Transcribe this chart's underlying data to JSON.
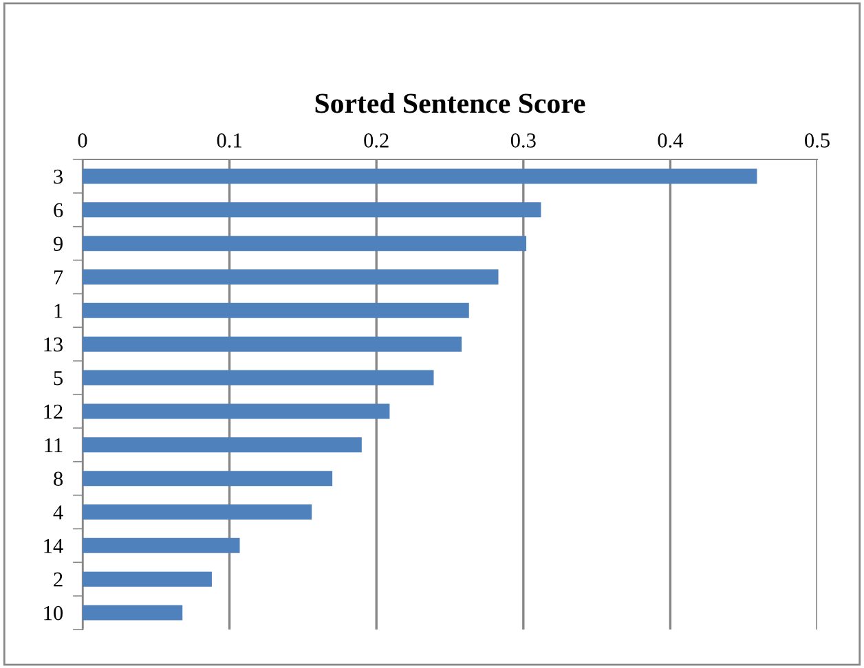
{
  "chart_data": {
    "type": "bar",
    "orientation": "horizontal",
    "title": "Sorted Sentence Score",
    "categories": [
      "3",
      "6",
      "9",
      "7",
      "1",
      "13",
      "5",
      "12",
      "11",
      "8",
      "4",
      "14",
      "2",
      "10"
    ],
    "values": [
      0.459,
      0.312,
      0.302,
      0.283,
      0.263,
      0.258,
      0.239,
      0.209,
      0.19,
      0.17,
      0.156,
      0.107,
      0.088,
      0.068
    ],
    "color": "#4f81bd",
    "xlim": [
      0,
      0.5
    ],
    "xticks": [
      0,
      0.1,
      0.2,
      0.3,
      0.4,
      0.5
    ],
    "grid": "x"
  }
}
